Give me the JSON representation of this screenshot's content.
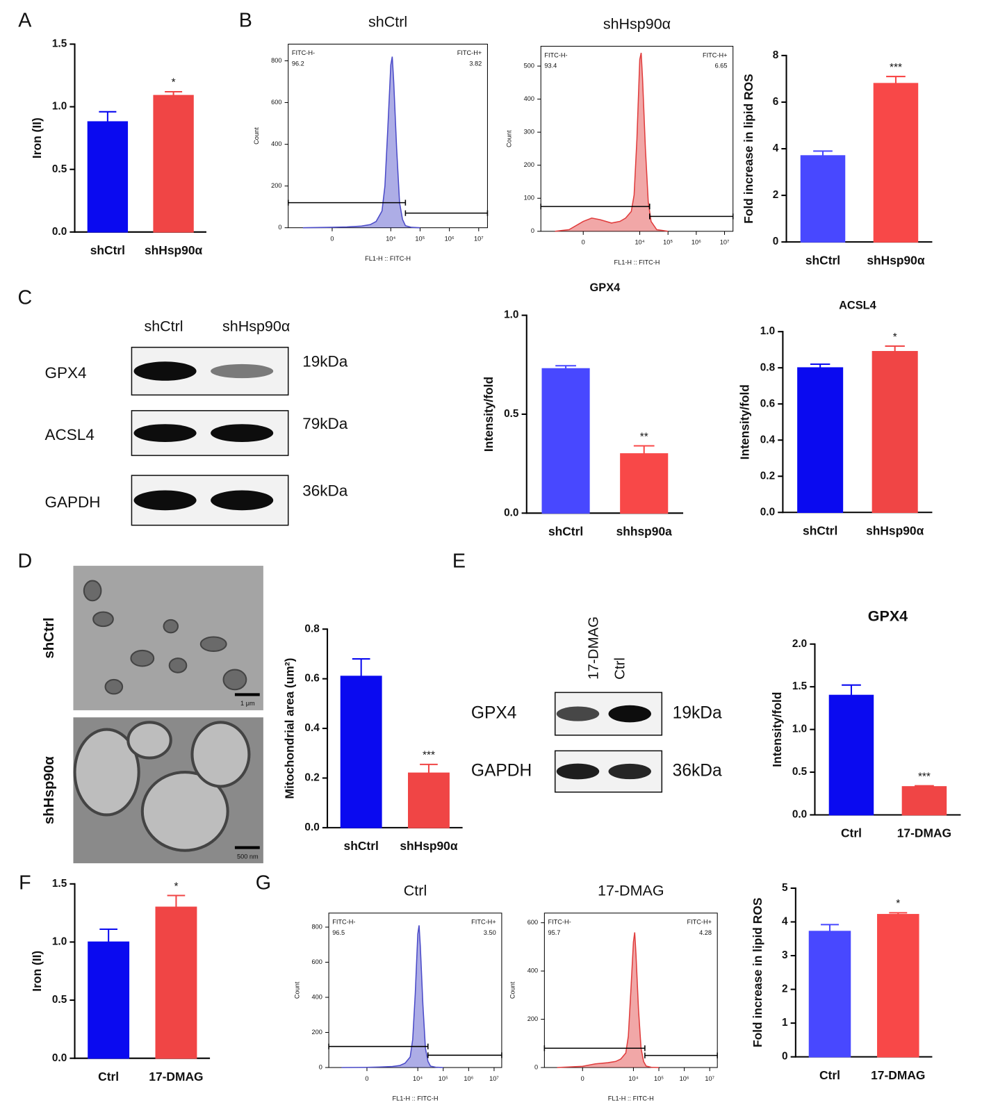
{
  "panel_labels": [
    "A",
    "B",
    "C",
    "D",
    "E",
    "F",
    "G"
  ],
  "chart_data": [
    {
      "type": "bar",
      "y_label": "Iron (II)",
      "categories": [
        "shCtrl",
        "shHsp90α"
      ],
      "values": [
        0.88,
        1.09
      ],
      "errors": [
        0.08,
        0.03
      ],
      "colors": [
        "#0a0af0",
        "#f04545"
      ],
      "annotation": "*",
      "ylim": [
        0,
        1.5
      ],
      "yticks": [
        {
          "value": 0,
          "label": "0.0"
        },
        0.5,
        {
          "value": 1,
          "label": "1.0"
        },
        1.5
      ]
    },
    {
      "type": "area",
      "title": "shCtrl",
      "x_label": "FL1-H :: FITC-H",
      "y_label": "Count",
      "color": "#4a4ac8",
      "x": [
        1.0,
        2.0,
        2.5,
        3.0,
        3.3,
        3.5,
        3.7,
        3.8,
        3.9,
        4.0,
        4.05,
        4.1,
        4.2,
        4.3,
        4.4,
        4.5,
        4.7,
        5.0
      ],
      "values": [
        0,
        2,
        4,
        8,
        15,
        30,
        80,
        200,
        480,
        780,
        820,
        700,
        380,
        120,
        40,
        10,
        2,
        0
      ],
      "xlim": [
        0.5,
        7.3
      ],
      "ylim": [
        0,
        880
      ],
      "xticks": [
        {
          "value": 2,
          "label": "0"
        },
        {
          "value": 4,
          "label": "10⁴"
        },
        {
          "value": 5,
          "label": "10⁵"
        },
        {
          "value": 6,
          "label": "10⁶"
        },
        {
          "value": 7,
          "label": "10⁷"
        }
      ],
      "yticks": [
        0,
        200,
        400,
        600,
        800
      ],
      "gates": [
        {
          "name": "FITC-H-",
          "value": 96.2,
          "x": [
            0.5,
            4.5
          ],
          "y": 120
        },
        {
          "name": "FITC-H+",
          "value": 3.82,
          "x": [
            4.5,
            7.3
          ],
          "y": 70
        }
      ]
    },
    {
      "type": "area",
      "title": "shHsp90α",
      "x_label": "FL1-H :: FITC-H",
      "y_label": "Count",
      "color": "#e03c3c",
      "x": [
        1.0,
        1.5,
        2.0,
        2.3,
        2.6,
        3.0,
        3.3,
        3.5,
        3.7,
        3.8,
        3.9,
        4.0,
        4.05,
        4.1,
        4.2,
        4.3,
        4.4,
        4.6,
        5.0
      ],
      "values": [
        0,
        5,
        30,
        40,
        35,
        25,
        30,
        40,
        60,
        110,
        280,
        520,
        540,
        460,
        250,
        90,
        30,
        5,
        0
      ],
      "xlim": [
        0.5,
        7.3
      ],
      "ylim": [
        0,
        560
      ],
      "xticks": [
        {
          "value": 2,
          "label": "0"
        },
        {
          "value": 4,
          "label": "10⁴"
        },
        {
          "value": 5,
          "label": "10⁵"
        },
        {
          "value": 6,
          "label": "10⁶"
        },
        {
          "value": 7,
          "label": "10⁷"
        }
      ],
      "yticks": [
        0,
        100,
        200,
        300,
        400,
        500
      ],
      "gates": [
        {
          "name": "FITC-H-",
          "value": 93.4,
          "x": [
            0.5,
            4.35
          ],
          "y": 75
        },
        {
          "name": "FITC-H+",
          "value": 6.65,
          "x": [
            4.35,
            7.3
          ],
          "y": 45
        }
      ]
    },
    {
      "type": "bar",
      "y_label": "Fold increase in lipid ROS",
      "categories": [
        "shCtrl",
        "shHsp90α"
      ],
      "values": [
        3.7,
        6.8
      ],
      "errors": [
        0.2,
        0.3
      ],
      "colors": [
        "#4848ff",
        "#f84848"
      ],
      "annotation": "***",
      "ylim": [
        0,
        8
      ],
      "yticks": [
        0,
        2,
        4,
        6,
        8
      ]
    },
    {
      "type": "bar",
      "title": "GPX4",
      "y_label": "Intensity/fold",
      "categories": [
        "shCtrl",
        "shhsp90a"
      ],
      "values": [
        0.73,
        0.3
      ],
      "errors": [
        0.015,
        0.04
      ],
      "colors": [
        "#4848ff",
        "#f84848"
      ],
      "annotation": "**",
      "ylim": [
        0,
        1
      ],
      "yticks": [
        {
          "value": 0,
          "label": "0.0"
        },
        0.5,
        {
          "value": 1,
          "label": "1.0"
        }
      ]
    },
    {
      "type": "bar",
      "title": "ACSL4",
      "y_label": "Intensity/fold",
      "categories": [
        "shCtrl",
        "shHsp90α"
      ],
      "values": [
        0.8,
        0.89
      ],
      "errors": [
        0.02,
        0.03
      ],
      "colors": [
        "#0a0af0",
        "#f04545"
      ],
      "annotation": "*",
      "ylim": [
        0,
        1
      ],
      "yticks": [
        {
          "value": 0,
          "label": "0.0"
        },
        0.2,
        0.4,
        0.6,
        0.8,
        {
          "value": 1,
          "label": "1.0"
        }
      ]
    },
    {
      "type": "bar",
      "y_label": "Mitochondrial area (um²)",
      "categories": [
        "shCtrl",
        "shHsp90α"
      ],
      "values": [
        0.61,
        0.22
      ],
      "errors": [
        0.07,
        0.035
      ],
      "colors": [
        "#0a0af0",
        "#f04545"
      ],
      "annotation": "***",
      "ylim": [
        0,
        0.8
      ],
      "yticks": [
        {
          "value": 0,
          "label": "0.0"
        },
        0.2,
        0.4,
        0.6,
        0.8
      ]
    },
    {
      "type": "bar",
      "title": "GPX4",
      "y_label": "Intensity/fold",
      "categories": [
        "Ctrl",
        "17-DMAG"
      ],
      "values": [
        1.4,
        0.33
      ],
      "errors": [
        0.12,
        0.01
      ],
      "colors": [
        "#0a0af0",
        "#f04545"
      ],
      "annotation": "***",
      "ylim": [
        0,
        2
      ],
      "yticks": [
        {
          "value": 0,
          "label": "0.0"
        },
        0.5,
        {
          "value": 1,
          "label": "1.0"
        },
        1.5,
        {
          "value": 2,
          "label": "2.0"
        }
      ]
    },
    {
      "type": "bar",
      "y_label": "Iron (II)",
      "categories": [
        "Ctrl",
        "17-DMAG"
      ],
      "values": [
        1.0,
        1.3
      ],
      "errors": [
        0.11,
        0.1
      ],
      "colors": [
        "#0a0af0",
        "#f04545"
      ],
      "annotation": "*",
      "ylim": [
        0,
        1.5
      ],
      "yticks": [
        {
          "value": 0,
          "label": "0.0"
        },
        0.5,
        {
          "value": 1,
          "label": "1.0"
        },
        1.5
      ]
    },
    {
      "type": "area",
      "title": "Ctrl",
      "x_label": "FL1-H :: FITC-H",
      "y_label": "Count",
      "color": "#4a4ac8",
      "x": [
        1.0,
        2.0,
        2.5,
        3.0,
        3.3,
        3.5,
        3.7,
        3.8,
        3.9,
        4.0,
        4.05,
        4.1,
        4.2,
        4.3,
        4.4,
        4.5,
        4.7,
        5.0
      ],
      "values": [
        0,
        1,
        3,
        6,
        12,
        25,
        60,
        160,
        420,
        760,
        810,
        690,
        360,
        110,
        35,
        8,
        2,
        0
      ],
      "xlim": [
        0.5,
        7.3
      ],
      "ylim": [
        0,
        880
      ],
      "xticks": [
        {
          "value": 2,
          "label": "0"
        },
        {
          "value": 4,
          "label": "10⁴"
        },
        {
          "value": 5,
          "label": "10⁵"
        },
        {
          "value": 6,
          "label": "10⁶"
        },
        {
          "value": 7,
          "label": "10⁷"
        }
      ],
      "yticks": [
        0,
        200,
        400,
        600,
        800
      ],
      "gates": [
        {
          "name": "FITC-H-",
          "value": 96.5,
          "x": [
            0.5,
            4.4
          ],
          "y": 120
        },
        {
          "name": "FITC-H+",
          "value": {
            "value": 3.5,
            "label": "3.50"
          },
          "x": [
            4.4,
            7.3
          ],
          "y": 70
        }
      ]
    },
    {
      "type": "area",
      "title": "17-DMAG",
      "x_label": "FL1-H :: FITC-H",
      "y_label": "Count",
      "color": "#e03c3c",
      "x": [
        1.0,
        2.0,
        2.5,
        3.0,
        3.3,
        3.5,
        3.7,
        3.8,
        3.9,
        4.0,
        4.05,
        4.1,
        4.2,
        4.3,
        4.4,
        4.5,
        4.7,
        5.0
      ],
      "values": [
        0,
        5,
        15,
        20,
        25,
        35,
        60,
        130,
        320,
        520,
        560,
        470,
        240,
        80,
        25,
        6,
        1,
        0
      ],
      "xlim": [
        0.5,
        7.3
      ],
      "ylim": [
        0,
        640
      ],
      "xticks": [
        {
          "value": 2,
          "label": "0"
        },
        {
          "value": 4,
          "label": "10⁴"
        },
        {
          "value": 5,
          "label": "10⁵"
        },
        {
          "value": 6,
          "label": "10⁶"
        },
        {
          "value": 7,
          "label": "10⁷"
        }
      ],
      "yticks": [
        0,
        200,
        400,
        600
      ],
      "gates": [
        {
          "name": "FITC-H-",
          "value": 95.7,
          "x": [
            0.5,
            4.45
          ],
          "y": 80
        },
        {
          "name": "FITC-H+",
          "value": 4.28,
          "x": [
            4.45,
            7.3
          ],
          "y": 50
        }
      ]
    },
    {
      "type": "bar",
      "y_label": "Fold increase in lipid ROS",
      "categories": [
        "Ctrl",
        "17-DMAG"
      ],
      "values": [
        3.72,
        4.22
      ],
      "errors": [
        0.2,
        0.05
      ],
      "colors": [
        "#4848ff",
        "#f84848"
      ],
      "annotation": "*",
      "ylim": [
        0,
        5
      ],
      "yticks": [
        0,
        1,
        2,
        3,
        4,
        5
      ]
    }
  ],
  "blots": [
    {
      "lanes": [
        "shCtrl",
        "shHsp90α"
      ],
      "rows": [
        {
          "protein": "GPX4",
          "size": "19kDa"
        },
        {
          "protein": "ACSL4",
          "size": "79kDa"
        },
        {
          "protein": "GAPDH",
          "size": "36kDa"
        }
      ]
    },
    {
      "lanes": [
        "17-DMAG",
        "Ctrl"
      ],
      "rows": [
        {
          "protein": "GPX4",
          "size": "19kDa"
        },
        {
          "protein": "GAPDH",
          "size": "36kDa"
        }
      ]
    }
  ],
  "micrographs": [
    {
      "label": "shCtrl",
      "scale_bar": "1 μm"
    },
    {
      "label": "shHsp90α",
      "scale_bar": "500 nm"
    }
  ]
}
